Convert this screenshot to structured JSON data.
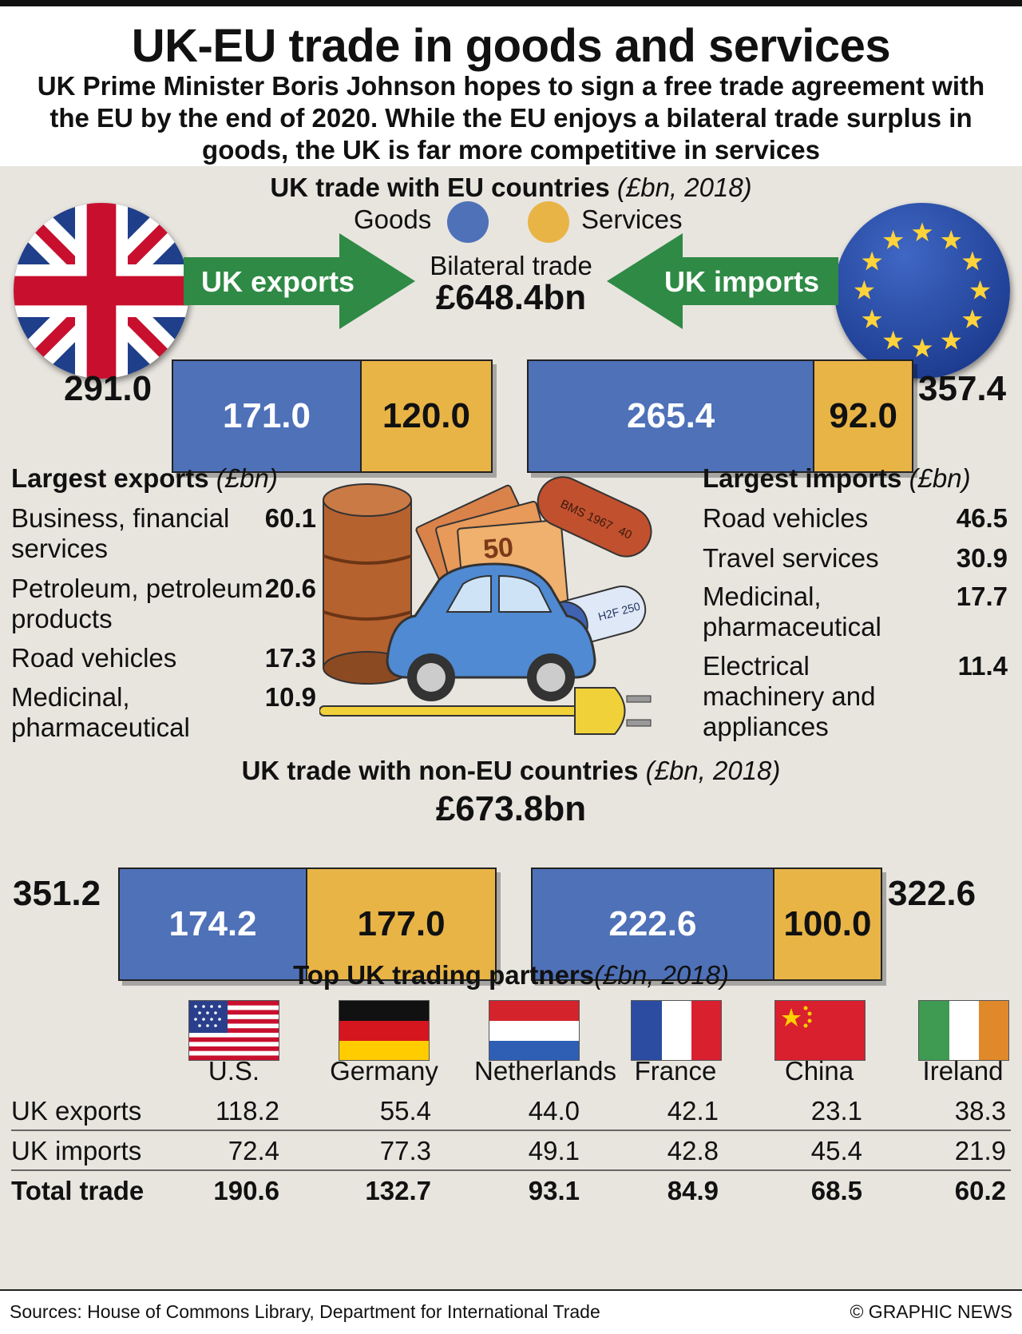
{
  "title": "UK-EU trade in goods and services",
  "subtitle": "UK Prime Minister Boris Johnson hopes to sign a free trade agreement with the EU by the end of 2020. While the EU enjoys a bilateral trade surplus in goods, the UK is far more competitive in services",
  "colors": {
    "goods": "#4e71b8",
    "services": "#e8b446",
    "arrow": "#2f8a45",
    "panel": "#e8e5df"
  },
  "eu_section": {
    "title": "UK trade with EU countries",
    "unit": "(£bn, 2018)",
    "legend_goods": "Goods",
    "legend_services": "Services",
    "exports_label": "UK exports",
    "imports_label": "UK imports",
    "bilateral_label": "Bilateral trade",
    "bilateral_value": "£648.4bn",
    "exports_total": "291.0",
    "imports_total": "357.4",
    "exports_goods": "171.0",
    "exports_services": "120.0",
    "imports_goods": "265.4",
    "imports_services": "92.0"
  },
  "largest_exports": {
    "title": "Largest exports",
    "unit": "(£bn)",
    "items": [
      {
        "label": "Business, financial services",
        "value": "60.1"
      },
      {
        "label": "Petroleum, petroleum products",
        "value": "20.6"
      },
      {
        "label": "Road vehicles",
        "value": "17.3"
      },
      {
        "label": "Medicinal, pharmaceutical",
        "value": "10.9"
      }
    ]
  },
  "largest_imports": {
    "title": "Largest imports",
    "unit": "(£bn)",
    "items": [
      {
        "label": "Road vehicles",
        "value": "46.5"
      },
      {
        "label": "Travel services",
        "value": "30.9"
      },
      {
        "label": "Medicinal, pharmaceutical",
        "value": "17.7"
      },
      {
        "label": "Electrical machinery and appliances",
        "value": "11.4"
      }
    ]
  },
  "illustration": {
    "pill_text": "BMS 1967",
    "pill_number": "40",
    "capsule_text": "H2F 250",
    "banknote_value": "50"
  },
  "non_eu_section": {
    "title": "UK trade with non-EU countries",
    "unit": "(£bn, 2018)",
    "total": "£673.8bn",
    "exports_total": "351.2",
    "imports_total": "322.6",
    "exports_goods": "174.2",
    "exports_services": "177.0",
    "imports_goods": "222.6",
    "imports_services": "100.0"
  },
  "partners": {
    "title": "Top UK trading partners",
    "unit": "(£bn, 2018)",
    "countries": [
      "U.S.",
      "Germany",
      "Netherlands",
      "France",
      "China",
      "Ireland"
    ],
    "row_labels": [
      "UK exports",
      "UK imports",
      "Total trade"
    ],
    "exports": [
      "118.2",
      "55.4",
      "44.0",
      "42.1",
      "23.1",
      "38.3"
    ],
    "imports": [
      "72.4",
      "77.3",
      "49.1",
      "42.8",
      "45.4",
      "21.9"
    ],
    "total": [
      "190.6",
      "132.7",
      "93.1",
      "84.9",
      "68.5",
      "60.2"
    ]
  },
  "chart_data": [
    {
      "type": "bar",
      "title": "UK trade with EU countries (£bn, 2018)",
      "categories": [
        "UK exports",
        "UK imports"
      ],
      "series": [
        {
          "name": "Goods",
          "values": [
            171.0,
            265.4
          ]
        },
        {
          "name": "Services",
          "values": [
            120.0,
            92.0
          ]
        }
      ],
      "totals": [
        291.0,
        357.4
      ],
      "bilateral_total": 648.4
    },
    {
      "type": "bar",
      "title": "UK trade with non-EU countries (£bn, 2018)",
      "categories": [
        "UK exports",
        "UK imports"
      ],
      "series": [
        {
          "name": "Goods",
          "values": [
            174.2,
            222.6
          ]
        },
        {
          "name": "Services",
          "values": [
            177.0,
            100.0
          ]
        }
      ],
      "totals": [
        351.2,
        322.6
      ],
      "bilateral_total": 673.8
    },
    {
      "type": "table",
      "title": "Top UK trading partners (£bn, 2018)",
      "columns": [
        "U.S.",
        "Germany",
        "Netherlands",
        "France",
        "China",
        "Ireland"
      ],
      "rows": [
        {
          "name": "UK exports",
          "values": [
            118.2,
            55.4,
            44.0,
            42.1,
            23.1,
            38.3
          ]
        },
        {
          "name": "UK imports",
          "values": [
            72.4,
            77.3,
            49.1,
            42.8,
            45.4,
            21.9
          ]
        },
        {
          "name": "Total trade",
          "values": [
            190.6,
            132.7,
            93.1,
            84.9,
            68.5,
            60.2
          ]
        }
      ]
    }
  ],
  "footer": {
    "sources": "Sources: House of Commons Library, Department for International Trade",
    "credit": "© GRAPHIC NEWS"
  }
}
